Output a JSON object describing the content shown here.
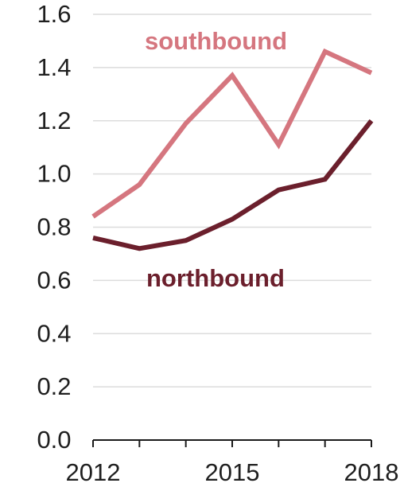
{
  "chart_data": {
    "type": "line",
    "title": "",
    "xlabel": "",
    "ylabel": "",
    "x": [
      2012,
      2013,
      2014,
      2015,
      2016,
      2017,
      2018
    ],
    "xlim": [
      2012,
      2018
    ],
    "ylim": [
      0.0,
      1.6
    ],
    "x_tick_values": [
      2012,
      2013,
      2014,
      2015,
      2016,
      2017,
      2018
    ],
    "x_tick_labels": [
      "2012",
      "",
      "",
      "2015",
      "",
      "",
      "2018"
    ],
    "y_tick_values": [
      0.0,
      0.2,
      0.4,
      0.6,
      0.8,
      1.0,
      1.2,
      1.4,
      1.6
    ],
    "y_tick_labels": [
      "0.0",
      "0.2",
      "0.4",
      "0.6",
      "0.8",
      "1.0",
      "1.2",
      "1.4",
      "1.6"
    ],
    "grid": "horizontal",
    "series": [
      {
        "name": "southbound",
        "color": "#d5767f",
        "values": [
          0.84,
          0.96,
          1.19,
          1.37,
          1.11,
          1.46,
          1.38
        ]
      },
      {
        "name": "northbound",
        "color": "#6b1f2c",
        "values": [
          0.76,
          0.72,
          0.75,
          0.83,
          0.94,
          0.98,
          1.2
        ]
      }
    ]
  }
}
